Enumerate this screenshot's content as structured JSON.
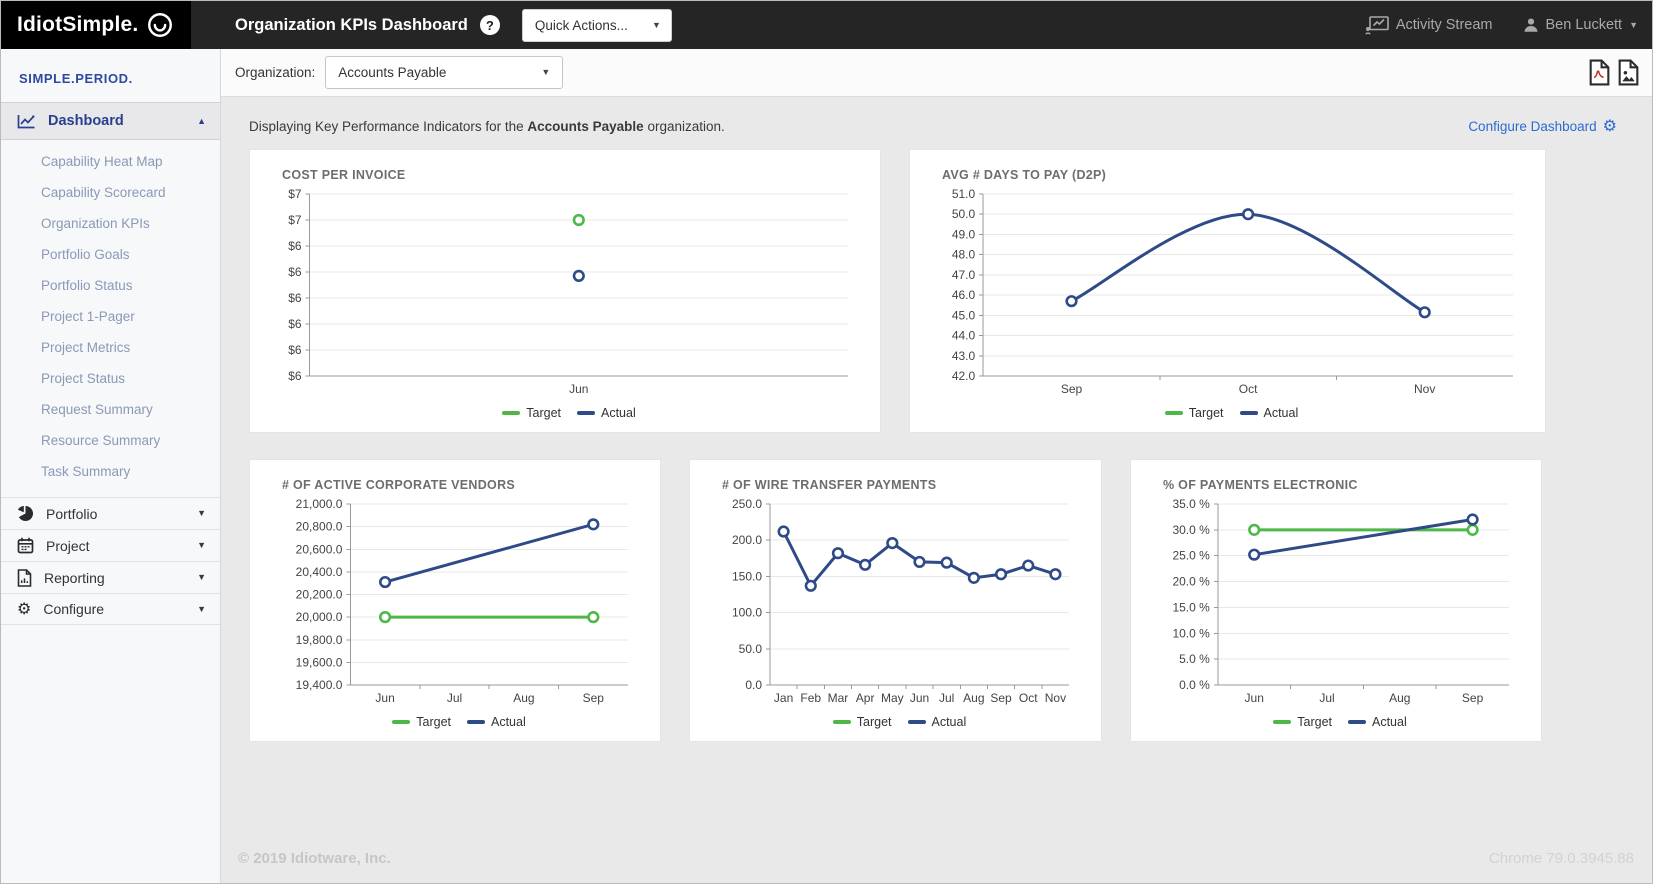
{
  "topbar": {
    "logo": "IdiotSimple.",
    "title": "Organization KPIs Dashboard",
    "help": "?",
    "quick_actions": "Quick Actions...",
    "activity_stream": "Activity Stream",
    "user": "Ben Luckett"
  },
  "icons": {
    "caret_down": "▼",
    "caret_up": "▲",
    "gear": "⚙"
  },
  "sidebar": {
    "brand": "SIMPLE.PERIOD.",
    "dashboard": "Dashboard",
    "subitems": [
      "Capability Heat Map",
      "Capability Scorecard",
      "Organization KPIs",
      "Portfolio Goals",
      "Portfolio Status",
      "Project 1-Pager",
      "Project Metrics",
      "Project Status",
      "Request Summary",
      "Resource Summary",
      "Task Summary"
    ],
    "sections": [
      {
        "label": "Portfolio"
      },
      {
        "label": "Project"
      },
      {
        "label": "Reporting"
      },
      {
        "label": "Configure"
      }
    ]
  },
  "filters": {
    "organization_label": "Organization:",
    "organization_value": "Accounts Payable"
  },
  "info": {
    "prefix": "Displaying Key Performance Indicators for the ",
    "org": "Accounts Payable",
    "suffix": " organization.",
    "configure_dashboard": "Configure Dashboard"
  },
  "legend": {
    "target": "Target",
    "actual": "Actual"
  },
  "colors": {
    "target": "#4db848",
    "actual": "#2e4a87",
    "grid": "#e8e8e8",
    "axis": "#999999",
    "tick_text": "#444444"
  },
  "footer": {
    "copyright": "© 2019 Idiotware, Inc.",
    "browser": "Chrome 79.0.3945.88"
  },
  "chart_data": [
    {
      "type": "line",
      "title": "COST PER INVOICE",
      "categories": [
        "Jun"
      ],
      "ylim": [
        5.6,
        7.0
      ],
      "yticks": [
        7.0,
        6.8,
        6.6,
        6.4,
        6.2,
        6.0,
        5.8,
        5.6
      ],
      "ytick_labels": [
        "$7",
        "$7",
        "$6",
        "$6",
        "$6",
        "$6",
        "$6",
        "$6"
      ],
      "legend_position": "bottom",
      "grid": true,
      "series": [
        {
          "name": "Target",
          "values": [
            6.8
          ]
        },
        {
          "name": "Actual",
          "values": [
            6.37
          ]
        }
      ]
    },
    {
      "type": "line",
      "title": "AVG # DAYS TO PAY (D2P)",
      "categories": [
        "Sep",
        "Oct",
        "Nov"
      ],
      "ylim": [
        42.0,
        51.0
      ],
      "yticks": [
        51.0,
        50.0,
        49.0,
        48.0,
        47.0,
        46.0,
        45.0,
        44.0,
        43.0,
        42.0
      ],
      "ytick_labels": [
        "51.0",
        "50.0",
        "49.0",
        "48.0",
        "47.0",
        "46.0",
        "45.0",
        "44.0",
        "43.0",
        "42.0"
      ],
      "legend_position": "bottom",
      "grid": true,
      "series": [
        {
          "name": "Actual",
          "values": [
            45.7,
            50.0,
            45.15
          ],
          "smooth": true
        }
      ]
    },
    {
      "type": "line",
      "title": "# OF ACTIVE CORPORATE VENDORS",
      "categories": [
        "Jun",
        "Jul",
        "Aug",
        "Sep"
      ],
      "ylim": [
        19400,
        21000
      ],
      "yticks": [
        21000,
        20800,
        20600,
        20400,
        20200,
        20000,
        19800,
        19600,
        19400
      ],
      "ytick_labels": [
        "21,000.0",
        "20,800.0",
        "20,600.0",
        "20,400.0",
        "20,200.0",
        "20,000.0",
        "19,800.0",
        "19,600.0",
        "19,400.0"
      ],
      "legend_position": "bottom",
      "grid": true,
      "series": [
        {
          "name": "Target",
          "values": [
            20000,
            null,
            null,
            20000
          ]
        },
        {
          "name": "Actual",
          "values": [
            20310,
            null,
            null,
            20820
          ]
        }
      ]
    },
    {
      "type": "line",
      "title": "# OF WIRE TRANSFER PAYMENTS",
      "categories": [
        "Jan",
        "Feb",
        "Mar",
        "Apr",
        "May",
        "Jun",
        "Jul",
        "Aug",
        "Sep",
        "Oct",
        "Nov"
      ],
      "ylim": [
        0,
        250
      ],
      "yticks": [
        250,
        200,
        150,
        100,
        50,
        0
      ],
      "ytick_labels": [
        "250.0",
        "200.0",
        "150.0",
        "100.0",
        "50.0",
        "0.0"
      ],
      "legend_position": "bottom",
      "grid": true,
      "series": [
        {
          "name": "Actual",
          "values": [
            212,
            137,
            182,
            166,
            196,
            170,
            169,
            148,
            153,
            165,
            153
          ]
        }
      ]
    },
    {
      "type": "line",
      "title": "% OF PAYMENTS ELECTRONIC",
      "categories": [
        "Jun",
        "Jul",
        "Aug",
        "Sep"
      ],
      "ylim": [
        0,
        35
      ],
      "yticks": [
        35,
        30,
        25,
        20,
        15,
        10,
        5,
        0
      ],
      "ytick_labels": [
        "35.0 %",
        "30.0 %",
        "25.0 %",
        "20.0 %",
        "15.0 %",
        "10.0 %",
        "5.0 %",
        "0.0 %"
      ],
      "legend_position": "bottom",
      "grid": true,
      "series": [
        {
          "name": "Target",
          "values": [
            30,
            null,
            null,
            30
          ]
        },
        {
          "name": "Actual",
          "values": [
            25.2,
            null,
            null,
            32
          ]
        }
      ]
    }
  ]
}
